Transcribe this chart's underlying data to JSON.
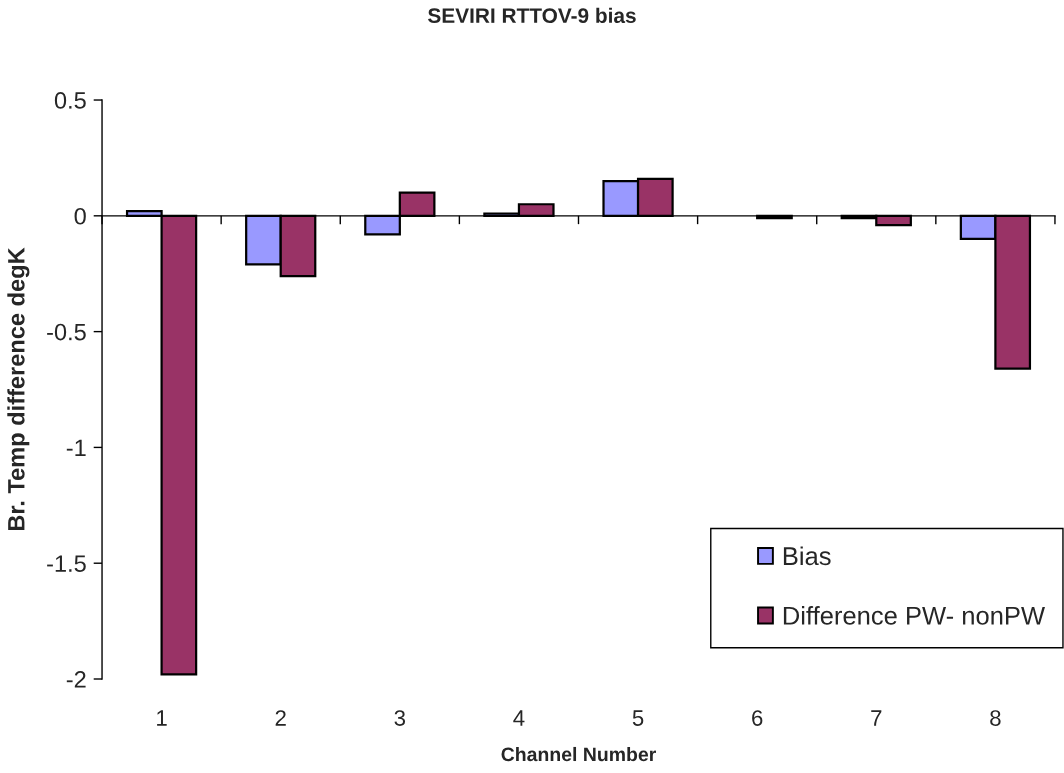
{
  "chart_data": {
    "type": "bar",
    "title": "SEVIRI RTTOV-9 bias",
    "xlabel": "Channel Number",
    "ylabel": "Br. Temp difference degK",
    "categories": [
      "1",
      "2",
      "3",
      "4",
      "5",
      "6",
      "7",
      "8"
    ],
    "series": [
      {
        "name": "Bias",
        "color": "#9999ff",
        "values": [
          0.02,
          -0.21,
          -0.08,
          0.01,
          0.15,
          null,
          -0.01,
          -0.1
        ]
      },
      {
        "name": "Difference PW- nonPW",
        "color": "#993366",
        "values": [
          -1.98,
          -0.26,
          0.1,
          0.05,
          0.16,
          -0.01,
          -0.04,
          -0.66
        ]
      }
    ],
    "ylim": [
      -2,
      0.5
    ],
    "yticks": [
      0.5,
      0,
      -0.5,
      -1,
      -1.5,
      -2
    ],
    "legend": "bottom right"
  }
}
